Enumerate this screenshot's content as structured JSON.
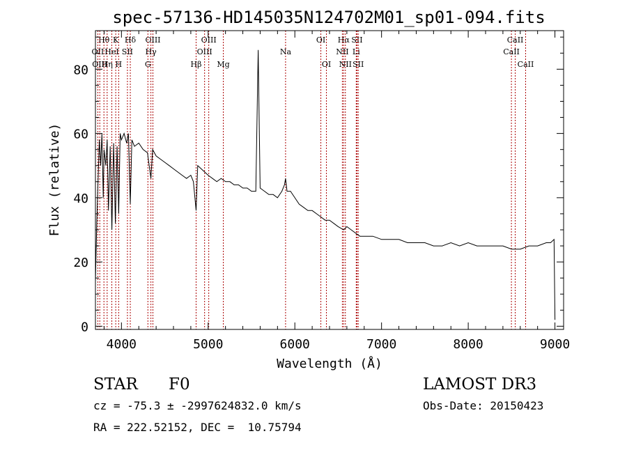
{
  "chart_data": {
    "type": "line",
    "title": "spec-57136-HD145035N124702M01_sp01-094.fits",
    "xlabel": "Wavelength (Å)",
    "ylabel": "Flux (relative)",
    "xlim": [
      3700,
      9100
    ],
    "ylim": [
      -1,
      92
    ],
    "x_ticks": [
      4000,
      5000,
      6000,
      7000,
      8000,
      9000
    ],
    "x_tick_labels": [
      "4000",
      "5000",
      "6000",
      "7000",
      "8000",
      "9000"
    ],
    "y_ticks": [
      0,
      20,
      40,
      60,
      80
    ],
    "y_tick_labels": [
      "0",
      "20",
      "40",
      "60",
      "80"
    ],
    "grid": false,
    "series": [
      {
        "name": "spectrum",
        "color": "#000000",
        "x": [
          3700,
          3715,
          3730,
          3745,
          3760,
          3775,
          3790,
          3800,
          3820,
          3835,
          3850,
          3870,
          3890,
          3910,
          3930,
          3950,
          3968,
          3985,
          4000,
          4030,
          4060,
          4080,
          4102,
          4120,
          4150,
          4200,
          4250,
          4300,
          4340,
          4360,
          4400,
          4450,
          4500,
          4550,
          4600,
          4650,
          4700,
          4750,
          4800,
          4830,
          4861,
          4880,
          4920,
          4960,
          5000,
          5050,
          5100,
          5150,
          5200,
          5250,
          5300,
          5350,
          5400,
          5450,
          5500,
          5550,
          5577,
          5600,
          5650,
          5700,
          5750,
          5800,
          5850,
          5880,
          5893,
          5910,
          5950,
          6000,
          6050,
          6100,
          6150,
          6200,
          6250,
          6300,
          6350,
          6400,
          6450,
          6500,
          6563,
          6600,
          6650,
          6700,
          6750,
          6800,
          6900,
          7000,
          7100,
          7200,
          7300,
          7400,
          7500,
          7600,
          7700,
          7800,
          7900,
          8000,
          8100,
          8200,
          8300,
          8400,
          8500,
          8600,
          8700,
          8800,
          8900,
          8950,
          8990,
          9000
        ],
        "y": [
          14,
          32,
          45,
          58,
          50,
          60,
          40,
          55,
          50,
          58,
          36,
          56,
          30,
          57,
          32,
          56,
          35,
          60,
          58,
          60,
          57,
          60,
          38,
          58,
          56,
          57,
          55,
          54,
          46,
          55,
          53,
          52,
          51,
          50,
          49,
          48,
          47,
          46,
          47,
          45,
          36,
          50,
          49,
          48,
          47,
          46,
          45,
          46,
          45,
          45,
          44,
          44,
          43,
          43,
          42,
          42,
          86,
          43,
          42,
          41,
          41,
          40,
          42,
          44,
          46,
          42,
          42,
          40,
          38,
          37,
          36,
          36,
          35,
          34,
          33,
          33,
          32,
          31,
          30,
          31,
          30,
          29,
          28,
          28,
          28,
          27,
          27,
          27,
          26,
          26,
          26,
          25,
          25,
          26,
          25,
          26,
          25,
          25,
          25,
          25,
          24,
          24,
          25,
          25,
          26,
          26,
          27,
          2
        ]
      }
    ],
    "line_markers": [
      {
        "label": "Hθ",
        "x": 3798,
        "row": 0
      },
      {
        "label": "K",
        "x": 3934,
        "row": 0
      },
      {
        "label": "Hδ",
        "x": 4102,
        "row": 0
      },
      {
        "label": "OIII",
        "x": 4363,
        "row": 0
      },
      {
        "label": "OIII",
        "x": 5007,
        "row": 0
      },
      {
        "label": "OI",
        "x": 6300,
        "row": 0
      },
      {
        "label": "Hα",
        "x": 6563,
        "row": 0
      },
      {
        "label": "SII",
        "x": 6717,
        "row": 0
      },
      {
        "label": "CaII",
        "x": 8542,
        "row": 0
      },
      {
        "label": "OII",
        "x": 3727,
        "row": 1
      },
      {
        "label": "HeI",
        "x": 3889,
        "row": 1
      },
      {
        "label": "SII",
        "x": 4069,
        "row": 1
      },
      {
        "label": "Hγ",
        "x": 4340,
        "row": 1
      },
      {
        "label": "OIII",
        "x": 4959,
        "row": 1
      },
      {
        "label": "Na",
        "x": 5893,
        "row": 1
      },
      {
        "label": "NII",
        "x": 6548,
        "row": 1
      },
      {
        "label": "Li",
        "x": 6708,
        "row": 1
      },
      {
        "label": "CaII",
        "x": 8498,
        "row": 1
      },
      {
        "label": "OIII",
        "x": 3750,
        "row": 2
      },
      {
        "label": "Hη",
        "x": 3835,
        "row": 2
      },
      {
        "label": "H",
        "x": 3968,
        "row": 2
      },
      {
        "label": "G",
        "x": 4305,
        "row": 2
      },
      {
        "label": "Hβ",
        "x": 4861,
        "row": 2
      },
      {
        "label": "Mg",
        "x": 5175,
        "row": 2
      },
      {
        "label": "OI",
        "x": 6364,
        "row": 2
      },
      {
        "label": "NII",
        "x": 6583,
        "row": 2
      },
      {
        "label": "SII",
        "x": 6731,
        "row": 2
      },
      {
        "label": "CaII",
        "x": 8662,
        "row": 2
      }
    ],
    "marker_color": "#aa0000"
  },
  "info": {
    "object_type": "STAR",
    "subclass": "F0",
    "survey": "LAMOST DR3",
    "redshift": "cz = -75.3 ± -2997624832.0 km/s",
    "obs_date": "Obs-Date: 20150423",
    "coords": "RA = 222.52152, DEC =  10.75794"
  }
}
